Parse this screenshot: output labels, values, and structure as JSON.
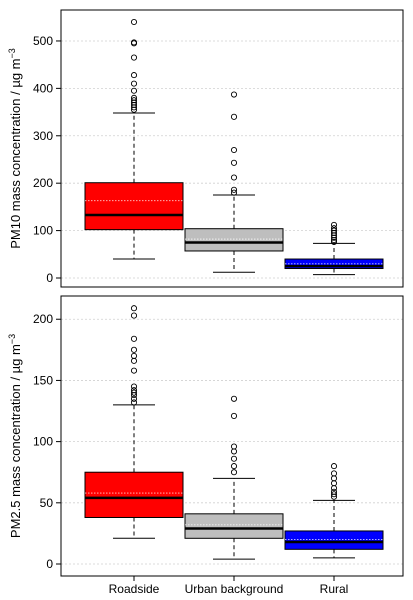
{
  "chart_data": [
    {
      "type": "boxplot",
      "ylabel_main": "PM10 mass concentration  /  µg m",
      "ylabel_sup": "−3",
      "ylim": [
        0,
        540
      ],
      "yticks": [
        0,
        100,
        200,
        300,
        400,
        500
      ],
      "grid": "horizontal dotted",
      "categories": [
        "Roadside",
        "Urban background",
        "Rural"
      ],
      "colors": [
        "#ff0000",
        "#bebebe",
        "#0000ff"
      ],
      "boxes": [
        {
          "whisker_low": 40,
          "q1": 102,
          "median": 133,
          "mean": 163,
          "q3": 201,
          "whisker_high": 348,
          "outliers": [
            355,
            360,
            365,
            370,
            375,
            380,
            395,
            410,
            428,
            465,
            495,
            497,
            540
          ]
        },
        {
          "whisker_low": 12,
          "q1": 57,
          "median": 75,
          "mean": 82,
          "q3": 104,
          "whisker_high": 175,
          "outliers": [
            180,
            186,
            212,
            243,
            270,
            340,
            387
          ]
        },
        {
          "whisker_low": 7,
          "q1": 20,
          "median": 25,
          "mean": 30,
          "q3": 40,
          "whisker_high": 73,
          "outliers": [
            76,
            80,
            85,
            90,
            95,
            100,
            105,
            112
          ]
        }
      ]
    },
    {
      "type": "boxplot",
      "ylabel_main": "PM2.5 mass concentration  /  µg m",
      "ylabel_sup": "−3",
      "ylim": [
        0,
        210
      ],
      "yticks": [
        0,
        50,
        100,
        150,
        200
      ],
      "grid": "horizontal dotted",
      "categories": [
        "Roadside",
        "Urban background",
        "Rural"
      ],
      "colors": [
        "#ff0000",
        "#bebebe",
        "#0000ff"
      ],
      "boxes": [
        {
          "whisker_low": 21,
          "q1": 38,
          "median": 54,
          "mean": 58,
          "q3": 75,
          "whisker_high": 130,
          "outliers": [
            132,
            135,
            138,
            140,
            142,
            145,
            158,
            166,
            170,
            175,
            184,
            203,
            209
          ]
        },
        {
          "whisker_low": 4,
          "q1": 21,
          "median": 29,
          "mean": 32,
          "q3": 41,
          "whisker_high": 70,
          "outliers": [
            75,
            80,
            86,
            92,
            96,
            121,
            135
          ]
        },
        {
          "whisker_low": 5,
          "q1": 12,
          "median": 18,
          "mean": 20,
          "q3": 27,
          "whisker_high": 52,
          "outliers": [
            55,
            57,
            59,
            62,
            66,
            70,
            74,
            80
          ]
        }
      ]
    }
  ]
}
